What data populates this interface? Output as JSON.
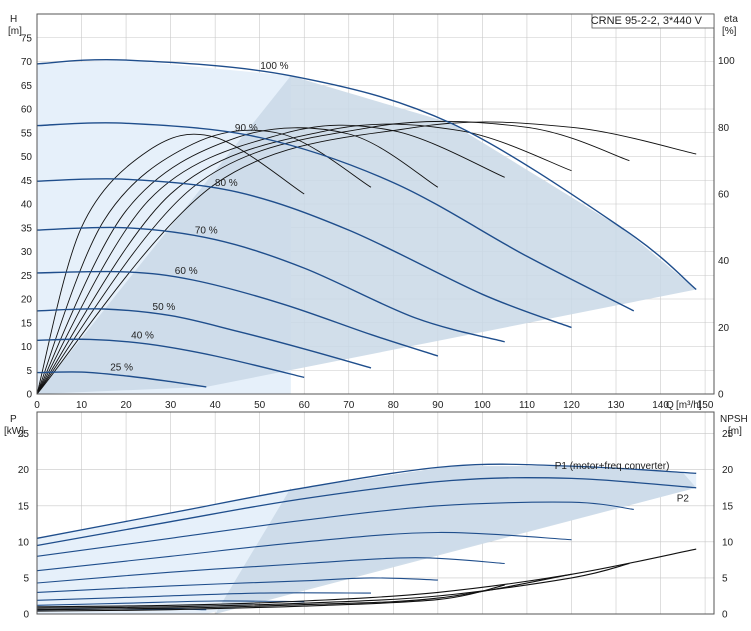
{
  "colors": {
    "curve": "#1f4e8c",
    "efficiency": "#111111",
    "fill_light": "#e6f0fa",
    "fill_dark": "#c9d8e6",
    "grid": "#c8c8c8",
    "frame": "#555555"
  },
  "chart_data": [
    {
      "type": "line",
      "panel": "head",
      "title": "CRNE 95-2-2, 3*440 V",
      "ylabel": "H",
      "ylabel_unit": "[m]",
      "y2label": "eta",
      "y2label_unit": "[%]",
      "xlabel": "Q",
      "xlabel_unit": "[m³/h]",
      "grid": true,
      "xlim": [
        0,
        152
      ],
      "ylim": [
        0,
        80
      ],
      "y2lim": [
        0,
        114
      ],
      "x_ticks": [
        0,
        10,
        20,
        30,
        40,
        50,
        60,
        70,
        80,
        90,
        100,
        110,
        120,
        130,
        140,
        150
      ],
      "y_ticks": [
        0,
        5,
        10,
        15,
        20,
        25,
        30,
        35,
        40,
        45,
        50,
        55,
        60,
        65,
        70,
        75
      ],
      "y2_ticks": [
        0,
        20,
        40,
        60,
        80,
        100
      ],
      "series": [
        {
          "name": "100 %",
          "x": [
            0,
            20,
            57,
            93,
            132,
            148
          ],
          "y": [
            69.5,
            70.3,
            67,
            57,
            34.5,
            22
          ]
        },
        {
          "name": "90 %",
          "x": [
            0,
            20,
            50,
            80,
            110,
            134
          ],
          "y": [
            56.5,
            57,
            54,
            44.5,
            29,
            17.5
          ]
        },
        {
          "name": "80 %",
          "x": [
            0,
            20,
            45,
            70,
            100,
            120
          ],
          "y": [
            44.8,
            45.2,
            42.5,
            34.5,
            21,
            14
          ]
        },
        {
          "name": "70 %",
          "x": [
            0,
            20,
            40,
            60,
            85,
            105
          ],
          "y": [
            34.5,
            35,
            32.5,
            26.5,
            16,
            11
          ]
        },
        {
          "name": "60 %",
          "x": [
            0,
            20,
            35,
            55,
            75,
            90
          ],
          "y": [
            25.5,
            25.7,
            24,
            19,
            12.5,
            8
          ]
        },
        {
          "name": "50 %",
          "x": [
            0,
            15,
            30,
            45,
            60,
            75
          ],
          "y": [
            17.5,
            17.9,
            16.5,
            13.2,
            9.5,
            5.5
          ]
        },
        {
          "name": "40 %",
          "x": [
            0,
            12,
            25,
            40,
            60
          ],
          "y": [
            11.3,
            11.5,
            10.5,
            8,
            3.5
          ]
        },
        {
          "name": "25 %",
          "x": [
            0,
            10,
            20,
            30,
            38
          ],
          "y": [
            4.5,
            4.6,
            3.8,
            2.6,
            1.5
          ]
        }
      ],
      "efficiency_curves": [
        {
          "x": [
            0,
            10,
            25,
            40,
            60
          ],
          "y": [
            0,
            50,
            73,
            77,
            60
          ]
        },
        {
          "x": [
            0,
            15,
            35,
            55,
            75
          ],
          "y": [
            0,
            52,
            75,
            78,
            62
          ]
        },
        {
          "x": [
            0,
            20,
            45,
            70,
            90
          ],
          "y": [
            0,
            55,
            77,
            78,
            62
          ]
        },
        {
          "x": [
            0,
            25,
            55,
            80,
            105
          ],
          "y": [
            0,
            58,
            78,
            79,
            65
          ]
        },
        {
          "x": [
            0,
            30,
            65,
            95,
            120
          ],
          "y": [
            0,
            60,
            79,
            79,
            67
          ]
        },
        {
          "x": [
            0,
            35,
            75,
            110,
            133
          ],
          "y": [
            0,
            62,
            80,
            80,
            70
          ]
        },
        {
          "x": [
            0,
            40,
            85,
            120,
            148
          ],
          "y": [
            0,
            63,
            80,
            80,
            72
          ]
        }
      ]
    },
    {
      "type": "line",
      "panel": "power",
      "ylabel": "P",
      "ylabel_unit": "[kW]",
      "y2label": "NPSH",
      "y2label_unit": "[m]",
      "grid": true,
      "xlim": [
        0,
        152
      ],
      "ylim": [
        0,
        28
      ],
      "y2lim": [
        0,
        28
      ],
      "y_ticks": [
        0,
        5,
        10,
        15,
        20,
        25
      ],
      "y2_ticks": [
        0,
        5,
        10,
        15,
        20,
        25
      ],
      "series": [
        {
          "name": "P1 (motor+freq.converter)",
          "x": [
            0,
            30,
            60,
            93,
            120,
            148
          ],
          "y": [
            10.5,
            14,
            17.5,
            20.5,
            20.5,
            19.5
          ]
        },
        {
          "name": "P2",
          "x": [
            0,
            30,
            60,
            93,
            120,
            148
          ],
          "y": [
            9.5,
            12.8,
            16,
            18.5,
            18.8,
            17.5
          ]
        },
        {
          "name": "",
          "x": [
            0,
            30,
            60,
            90,
            120,
            134
          ],
          "y": [
            8,
            10.5,
            13,
            15,
            15.5,
            14.5
          ]
        },
        {
          "name": "",
          "x": [
            0,
            30,
            60,
            90,
            120
          ],
          "y": [
            6,
            8,
            10,
            11.3,
            10.3
          ]
        },
        {
          "name": "",
          "x": [
            0,
            30,
            60,
            85,
            105
          ],
          "y": [
            4.3,
            5.8,
            7,
            7.8,
            7
          ]
        },
        {
          "name": "",
          "x": [
            0,
            30,
            60,
            75,
            90
          ],
          "y": [
            3,
            3.9,
            4.6,
            5,
            4.7
          ]
        },
        {
          "name": "",
          "x": [
            0,
            25,
            50,
            75
          ],
          "y": [
            1.9,
            2.4,
            2.9,
            2.9
          ]
        },
        {
          "name": "",
          "x": [
            0,
            20,
            40,
            60
          ],
          "y": [
            1.2,
            1.5,
            1.8,
            1.7
          ]
        },
        {
          "name": "",
          "x": [
            0,
            15,
            30,
            38
          ],
          "y": [
            0.6,
            0.7,
            0.7,
            0.6
          ]
        }
      ],
      "npsh_curves": [
        {
          "x": [
            0,
            30,
            60,
            90,
            120,
            148
          ],
          "y": [
            1,
            1.2,
            1.8,
            3,
            5.5,
            9
          ]
        },
        {
          "x": [
            0,
            30,
            60,
            90,
            120,
            133
          ],
          "y": [
            0.8,
            1,
            1.5,
            2.5,
            5,
            7
          ]
        },
        {
          "x": [
            0,
            30,
            60,
            90,
            120
          ],
          "y": [
            0.6,
            0.8,
            1.3,
            2.2,
            5.5
          ]
        },
        {
          "x": [
            0,
            30,
            60,
            90,
            105
          ],
          "y": [
            0.4,
            0.6,
            1.1,
            2,
            4
          ]
        }
      ]
    }
  ]
}
